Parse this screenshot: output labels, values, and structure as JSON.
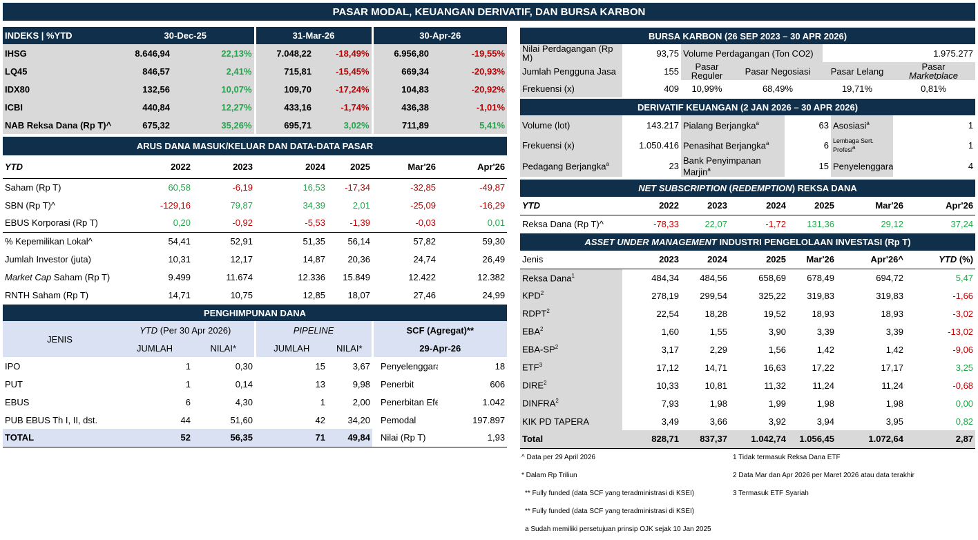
{
  "title": "PASAR MODAL, KEUANGAN DERIVATIF, DAN BURSA KARBON",
  "indeks": {
    "header": [
      "INDEKS | %YTD",
      "30-Dec-25",
      "31-Mar-26",
      "30-Apr-26"
    ],
    "rows": [
      {
        "name": "IHSG",
        "v1": "8.646,94",
        "p1": "22,13%",
        "v2": "7.048,22",
        "p2": "-18,49%",
        "v3": "6.956,80",
        "p3": "-19,55%"
      },
      {
        "name": "LQ45",
        "v1": "846,57",
        "p1": "2,41%",
        "v2": "715,81",
        "p2": "-15,45%",
        "v3": "669,34",
        "p3": "-20,93%"
      },
      {
        "name": "IDX80",
        "v1": "132,56",
        "p1": "10,07%",
        "v2": "109,70",
        "p2": "-17,24%",
        "v3": "104,83",
        "p3": "-20,92%"
      },
      {
        "name": "ICBI",
        "v1": "440,84",
        "p1": "12,27%",
        "v2": "433,16",
        "p2": "-1,74%",
        "v3": "436,38",
        "p3": "-1,01%"
      },
      {
        "name": "NAB Reksa Dana (Rp T)^",
        "v1": "675,32",
        "p1": "35,26%",
        "v2": "695,71",
        "p2": "3,02%",
        "v3": "711,89",
        "p3": "5,41%"
      }
    ]
  },
  "arus": {
    "title": "ARUS DANA MASUK/KELUAR DAN DATA-DATA PASAR",
    "header": [
      "YTD",
      "2022",
      "2023",
      "2024",
      "2025",
      "Mar'26",
      "Apr'26"
    ],
    "rows": [
      {
        "name": "Saham (Rp T)",
        "vals": [
          "60,58",
          "-6,19",
          "16,53",
          "-17,34",
          "-32,85",
          "-49,87"
        ]
      },
      {
        "name": "SBN (Rp T)^",
        "vals": [
          "-129,16",
          "79,87",
          "34,39",
          "2,01",
          "-25,09",
          "-16,29"
        ]
      },
      {
        "name": "EBUS Korporasi (Rp T)",
        "vals": [
          "0,20",
          "-0,92",
          "-5,53",
          "-1,39",
          "-0,03",
          "0,01"
        ]
      },
      {
        "name": "% Kepemilikan Lokal^",
        "vals": [
          "54,41",
          "52,91",
          "51,35",
          "56,14",
          "57,82",
          "59,30"
        ]
      },
      {
        "name": "Jumlah Investor (juta)",
        "vals": [
          "10,31",
          "12,17",
          "14,87",
          "20,36",
          "24,74",
          "26,49"
        ]
      },
      {
        "name_i": "Market Cap",
        "name_rest": " Saham (Rp T)",
        "vals": [
          "9.499",
          "11.674",
          "12.336",
          "15.849",
          "12.422",
          "12.382"
        ]
      },
      {
        "name": "RNTH Saham (Rp T)",
        "vals": [
          "14,71",
          "10,75",
          "12,85",
          "18,07",
          "27,46",
          "24,99"
        ]
      }
    ]
  },
  "penghimpunan": {
    "title": "PENGHIMPUNAN DANA",
    "jenis": "JENIS",
    "ytd_label": "YTD",
    "ytd_rest": " (Per 30 Apr 2026)",
    "pipeline": "PIPELINE",
    "scf": "SCF (Agregat)**",
    "scf_date": "29-Apr-26",
    "jumlah": "JUMLAH",
    "nilai": "NILAI*",
    "rows": [
      {
        "name": "IPO",
        "j1": "1",
        "n1": "0,30",
        "j2": "15",
        "n2": "3,67",
        "sl": "Penyelenggara",
        "sv": "18"
      },
      {
        "name": "PUT",
        "j1": "1",
        "n1": "0,14",
        "j2": "13",
        "n2": "9,98",
        "sl": "Penerbit",
        "sv": "606"
      },
      {
        "name": "EBUS",
        "j1": "6",
        "n1": "4,30",
        "j2": "1",
        "n2": "2,00",
        "sl": "Penerbitan Efek",
        "sv": "1.042"
      },
      {
        "name": "PUB EBUS Th I, II, dst.",
        "j1": "44",
        "n1": "51,60",
        "j2": "42",
        "n2": "34,20",
        "sl": "Pemodal",
        "sv": "197.897"
      }
    ],
    "total": {
      "name": "TOTAL",
      "j1": "52",
      "n1": "56,35",
      "j2": "71",
      "n2": "49,84",
      "sl": "Nilai (Rp T)",
      "sv": "1,93"
    }
  },
  "karbon": {
    "title": "BURSA KARBON (26 SEP 2023 – 30 APR 2026)",
    "nilai_label": "Nilai Perdagangan (Rp M)",
    "nilai_val": "93,75",
    "volume_label": "Volume Perdagangan (Ton CO2)",
    "volume_val": "1.975.277",
    "pengguna_label": "Jumlah Pengguna Jasa",
    "pengguna_val": "155",
    "h_reguler": "Pasar Reguler",
    "h_negosiasi": "Pasar Negosiasi",
    "h_lelang": "Pasar Lelang",
    "h_market_1": "Pasar",
    "h_market_2": "Marketplace",
    "frek_label": "Frekuensi (x)",
    "frek_val": "409",
    "reguler": "10,99%",
    "negosiasi": "68,49%",
    "lelang": "19,71%",
    "market": "0,81%"
  },
  "derivatif": {
    "title": "DERIVATIF KEUANGAN (2 JAN 2026  – 30 APR 2026)",
    "rows": [
      {
        "l1": "Volume (lot)",
        "v1": "143.217",
        "l2": "Pialang Berjangka",
        "v2": "63",
        "l3": "Asosiasi",
        "v3": "1"
      },
      {
        "l1": "Frekuensi (x)",
        "v1": "1.050.416",
        "l2": "Penasihat Berjangka",
        "v2": "6",
        "l3": "Lembaga Sert. Profesi",
        "v3": "1"
      },
      {
        "l1": "Pedagang Berjangka",
        "v1": "23",
        "l2": "Bank Penyimpanan Marjin",
        "v2": "15",
        "l3": "Penyelenggara",
        "v3": "4"
      }
    ],
    "sup_a": "a"
  },
  "net": {
    "title_i1": "NET SUBSCRIPTION",
    "title_m": " (",
    "title_i2": "REDEMPTION",
    "title_e": ") REKSA DANA",
    "header": [
      "YTD",
      "2022",
      "2023",
      "2024",
      "2025",
      "Mar'26",
      "Apr'26"
    ],
    "row": {
      "name": "Reksa Dana (Rp T)^",
      "vals": [
        "-78,33",
        "22,07",
        "-1,72",
        "131,36",
        "29,12",
        "37,24"
      ]
    }
  },
  "aum": {
    "title_i": "ASSET UNDER MANAGEMENT",
    "title_rest": " INDUSTRI PENGELOLAAN INVESTASI (Rp T)",
    "header": [
      "Jenis",
      "2023",
      "2024",
      "2025",
      "Mar'26",
      "Apr'26^",
      "YTD",
      " (%)"
    ],
    "rows": [
      {
        "name": "Reksa Dana",
        "sup": "1",
        "vals": [
          "484,34",
          "484,56",
          "658,69",
          "678,49",
          "694,72"
        ],
        "ytd": "5,47"
      },
      {
        "name": "KPD",
        "sup": "2",
        "vals": [
          "278,19",
          "299,54",
          "325,22",
          "319,83",
          "319,83"
        ],
        "ytd": "-1,66"
      },
      {
        "name": "RDPT",
        "sup": "2",
        "vals": [
          "22,54",
          "18,28",
          "19,52",
          "18,93",
          "18,93"
        ],
        "ytd": "-3,02"
      },
      {
        "name": "EBA",
        "sup": "2",
        "vals": [
          "1,60",
          "1,55",
          "3,90",
          "3,39",
          "3,39"
        ],
        "ytd": "-13,02"
      },
      {
        "name": "EBA-SP",
        "sup": "2",
        "vals": [
          "3,17",
          "2,29",
          "1,56",
          "1,42",
          "1,42"
        ],
        "ytd": "-9,06"
      },
      {
        "name": "ETF",
        "sup": "3",
        "vals": [
          "17,12",
          "14,71",
          "16,63",
          "17,22",
          "17,17"
        ],
        "ytd": "3,25"
      },
      {
        "name": "DIRE",
        "sup": "2",
        "vals": [
          "10,33",
          "10,81",
          "11,32",
          "11,24",
          "11,24"
        ],
        "ytd": "-0,68"
      },
      {
        "name": "DINFRA",
        "sup": "2",
        "vals": [
          "7,93",
          "1,98",
          "1,99",
          "1,98",
          "1,98"
        ],
        "ytd": "0,00"
      },
      {
        "name": "KIK PD TAPERA",
        "sup": "",
        "vals": [
          "3,49",
          "3,66",
          "3,92",
          "3,94",
          "3,95"
        ],
        "ytd": "0,82"
      }
    ],
    "total": {
      "name": "Total",
      "vals": [
        "828,71",
        "837,37",
        "1.042,74",
        "1.056,45",
        "1.072,64"
      ],
      "ytd": "2,87"
    }
  },
  "notes": {
    "left": [
      "^ Data per 29 April 2026",
      "* Dalam Rp Triliun",
      "** Fully funded (data SCF yang teradministrasi di KSEI)",
      "** Fully funded (data SCF yang teradministrasi di KSEI)",
      "a Sudah memiliki persetujuan prinsip OJK sejak 10 Jan 2025"
    ],
    "right": [
      "1 Tidak termasuk Reksa Dana ETF",
      "2 Data Mar dan Apr 2026 per Maret 2026 atau data terakhir",
      "3 Termasuk ETF Syariah"
    ]
  },
  "colors": {
    "navy": "#0f2f4a",
    "gray": "#d9d9d9",
    "lightblue": "#d9e1f2",
    "green": "#1fa84a",
    "red": "#c00000"
  }
}
